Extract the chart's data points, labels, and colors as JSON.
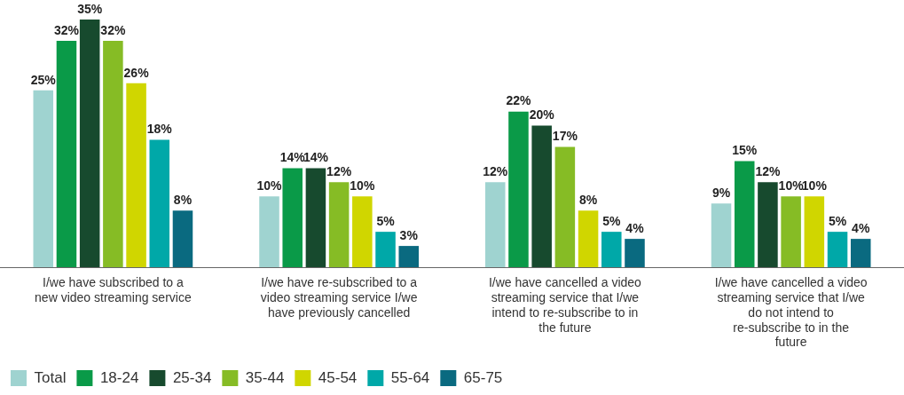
{
  "chart_data": {
    "type": "bar",
    "categories": [
      "I/we have subscribed to a new video streaming service",
      "I/we have re-subscribed to a video streaming service I/we have previously cancelled",
      "I/we have cancelled a video streaming service that I/we intend to re-subscribe to in the future",
      "I/we have cancelled a video streaming service that I/we do not intend to re-subscribe to in the future"
    ],
    "series": [
      {
        "name": "Total",
        "color": "#9fd3d0",
        "values": [
          25,
          10,
          12,
          9
        ],
        "value_labels": [
          "25%",
          "10%",
          "12%",
          "9%"
        ]
      },
      {
        "name": "18-24",
        "color": "#0a9a48",
        "values": [
          32,
          14,
          22,
          15
        ],
        "value_labels": [
          "32%",
          "14%",
          "22%",
          "15%"
        ]
      },
      {
        "name": "25-34",
        "color": "#174a2e",
        "values": [
          35,
          14,
          20,
          12
        ],
        "value_labels": [
          "35%",
          "14%",
          "20%",
          "12%"
        ]
      },
      {
        "name": "35-44",
        "color": "#86bc25",
        "values": [
          32,
          12,
          17,
          10
        ],
        "value_labels": [
          "32%",
          "12%",
          "17%",
          "10%"
        ]
      },
      {
        "name": "45-54",
        "color": "#d0d600",
        "values": [
          26,
          10,
          8,
          10
        ],
        "value_labels": [
          "26%",
          "10%",
          "8%",
          "10%"
        ]
      },
      {
        "name": "55-64",
        "color": "#00a8a8",
        "values": [
          18,
          5,
          5,
          5
        ],
        "value_labels": [
          "18%",
          "5%",
          "5%",
          "5%"
        ]
      },
      {
        "name": "65-75",
        "color": "#0a6a80",
        "values": [
          8,
          3,
          4,
          4
        ],
        "value_labels": [
          "8%",
          "3%",
          "4%",
          "4%"
        ]
      }
    ],
    "legend": "bottom"
  }
}
